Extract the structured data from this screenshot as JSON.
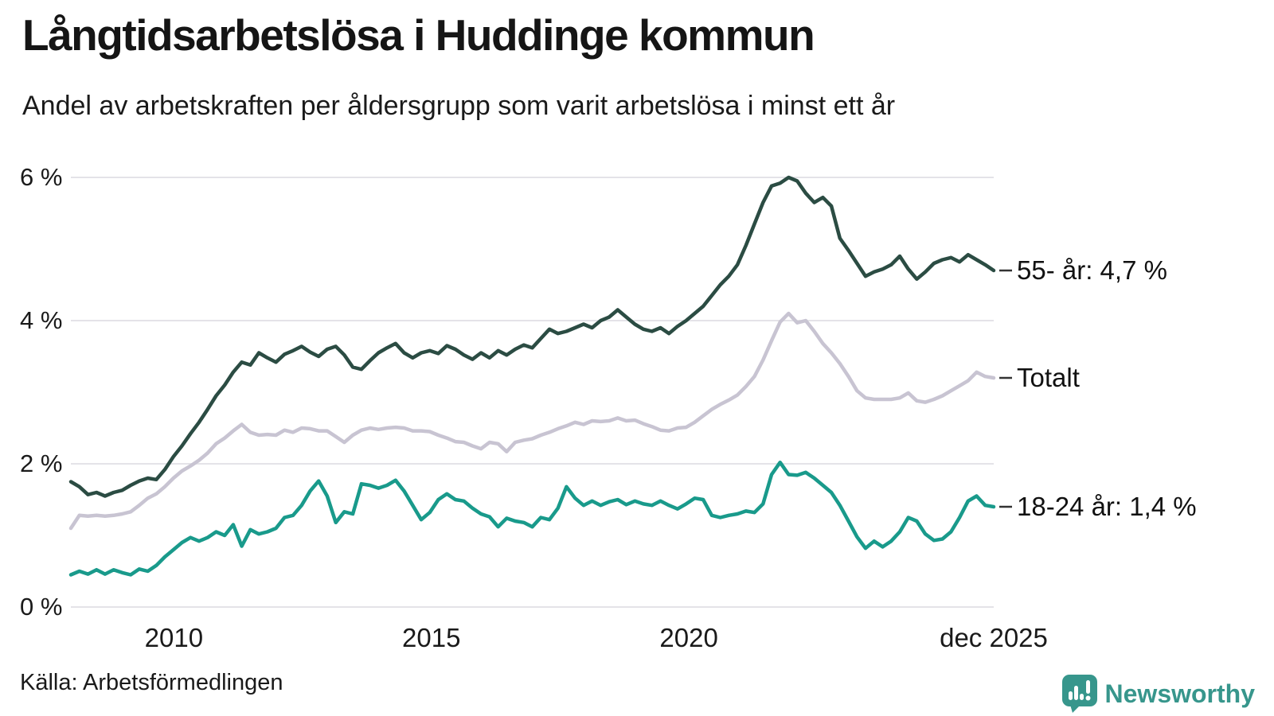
{
  "header": {
    "title": "Långtidsarbetslösa i Huddinge kommun",
    "subtitle": "Andel av arbetskraften per åldersgrupp som varit arbetslösa i minst ett år"
  },
  "source": {
    "label": "Källa: Arbetsförmedlingen"
  },
  "branding": {
    "name": "Newsworthy",
    "icon": "newsworthy-speech-bubble-chart-icon",
    "color": "#37968c"
  },
  "colors": {
    "text": "#1a1a1a",
    "gridline": "#e4e3e8",
    "leader_dash": "#333333"
  },
  "chart_data": {
    "type": "line",
    "title": "Långtidsarbetslösa i Huddinge kommun",
    "subtitle": "Andel av arbetskraften per åldersgrupp som varit arbetslösa i minst ett år",
    "xlabel": "",
    "ylabel": "",
    "x_start": 2008.0,
    "x_end": 2025.92,
    "ylim": [
      0,
      6.3
    ],
    "grid": "horizontal",
    "legend_position": "right-end-labels",
    "y_ticks": [
      {
        "label": "0 %",
        "value": 0
      },
      {
        "label": "2 %",
        "value": 2
      },
      {
        "label": "4 %",
        "value": 4
      },
      {
        "label": "6 %",
        "value": 6
      }
    ],
    "x_ticks": [
      {
        "label": "2010",
        "year": 2010
      },
      {
        "label": "2015",
        "year": 2015
      },
      {
        "label": "2020",
        "year": 2020
      },
      {
        "label": "dec 2025",
        "year": 2025.92
      }
    ],
    "series": [
      {
        "name": "55- år",
        "end_label": "55- år: 4,7 %",
        "color": "#2b4c43",
        "last_value": 4.7,
        "values": [
          1.75,
          1.68,
          1.57,
          1.6,
          1.55,
          1.6,
          1.63,
          1.7,
          1.76,
          1.8,
          1.78,
          1.92,
          2.1,
          2.25,
          2.42,
          2.58,
          2.76,
          2.95,
          3.1,
          3.28,
          3.42,
          3.38,
          3.55,
          3.48,
          3.42,
          3.53,
          3.58,
          3.64,
          3.56,
          3.5,
          3.6,
          3.64,
          3.52,
          3.35,
          3.32,
          3.44,
          3.55,
          3.62,
          3.68,
          3.55,
          3.48,
          3.55,
          3.58,
          3.54,
          3.65,
          3.6,
          3.52,
          3.46,
          3.55,
          3.48,
          3.58,
          3.52,
          3.6,
          3.66,
          3.62,
          3.75,
          3.88,
          3.82,
          3.85,
          3.9,
          3.95,
          3.9,
          4.0,
          4.05,
          4.15,
          4.05,
          3.95,
          3.88,
          3.85,
          3.9,
          3.82,
          3.92,
          4.0,
          4.1,
          4.2,
          4.35,
          4.5,
          4.62,
          4.78,
          5.05,
          5.35,
          5.65,
          5.88,
          5.92,
          6.0,
          5.95,
          5.78,
          5.65,
          5.72,
          5.6,
          5.15,
          4.98,
          4.8,
          4.62,
          4.68,
          4.72,
          4.78,
          4.9,
          4.72,
          4.58,
          4.68,
          4.8,
          4.85,
          4.88,
          4.82,
          4.92,
          4.85,
          4.78,
          4.7
        ]
      },
      {
        "name": "Totalt",
        "end_label": "Totalt",
        "color": "#c8c4d2",
        "last_value": 3.2,
        "values": [
          1.1,
          1.28,
          1.27,
          1.28,
          1.27,
          1.28,
          1.3,
          1.33,
          1.42,
          1.52,
          1.58,
          1.68,
          1.8,
          1.9,
          1.97,
          2.05,
          2.15,
          2.28,
          2.36,
          2.46,
          2.55,
          2.44,
          2.4,
          2.41,
          2.4,
          2.47,
          2.44,
          2.5,
          2.49,
          2.46,
          2.46,
          2.38,
          2.3,
          2.4,
          2.47,
          2.5,
          2.48,
          2.5,
          2.51,
          2.5,
          2.46,
          2.46,
          2.45,
          2.4,
          2.36,
          2.31,
          2.3,
          2.25,
          2.21,
          2.3,
          2.28,
          2.17,
          2.3,
          2.33,
          2.35,
          2.4,
          2.44,
          2.49,
          2.53,
          2.58,
          2.55,
          2.6,
          2.59,
          2.6,
          2.64,
          2.6,
          2.61,
          2.56,
          2.52,
          2.47,
          2.46,
          2.5,
          2.51,
          2.58,
          2.67,
          2.76,
          2.83,
          2.89,
          2.96,
          3.08,
          3.22,
          3.45,
          3.72,
          3.98,
          4.1,
          3.97,
          4.0,
          3.85,
          3.68,
          3.55,
          3.4,
          3.22,
          3.02,
          2.92,
          2.9,
          2.9,
          2.9,
          2.92,
          2.99,
          2.88,
          2.86,
          2.9,
          2.95,
          3.02,
          3.09,
          3.16,
          3.28,
          3.22,
          3.2
        ]
      },
      {
        "name": "18-24 år",
        "end_label": "18-24 år: 1,4 %",
        "color": "#199a8b",
        "last_value": 1.4,
        "values": [
          0.45,
          0.5,
          0.46,
          0.52,
          0.46,
          0.52,
          0.48,
          0.45,
          0.53,
          0.5,
          0.58,
          0.7,
          0.8,
          0.9,
          0.97,
          0.92,
          0.97,
          1.05,
          1.0,
          1.15,
          0.85,
          1.08,
          1.02,
          1.05,
          1.1,
          1.25,
          1.28,
          1.42,
          1.62,
          1.76,
          1.55,
          1.18,
          1.33,
          1.3,
          1.72,
          1.7,
          1.66,
          1.7,
          1.77,
          1.62,
          1.42,
          1.22,
          1.32,
          1.5,
          1.58,
          1.5,
          1.48,
          1.38,
          1.3,
          1.26,
          1.12,
          1.24,
          1.2,
          1.18,
          1.12,
          1.25,
          1.22,
          1.38,
          1.68,
          1.52,
          1.42,
          1.48,
          1.42,
          1.47,
          1.5,
          1.43,
          1.48,
          1.44,
          1.42,
          1.48,
          1.42,
          1.37,
          1.44,
          1.52,
          1.5,
          1.28,
          1.25,
          1.28,
          1.3,
          1.34,
          1.32,
          1.44,
          1.85,
          2.02,
          1.85,
          1.84,
          1.88,
          1.8,
          1.7,
          1.6,
          1.42,
          1.2,
          0.98,
          0.82,
          0.92,
          0.84,
          0.92,
          1.05,
          1.25,
          1.2,
          1.02,
          0.93,
          0.95,
          1.05,
          1.25,
          1.48,
          1.55,
          1.42,
          1.4
        ]
      }
    ]
  }
}
